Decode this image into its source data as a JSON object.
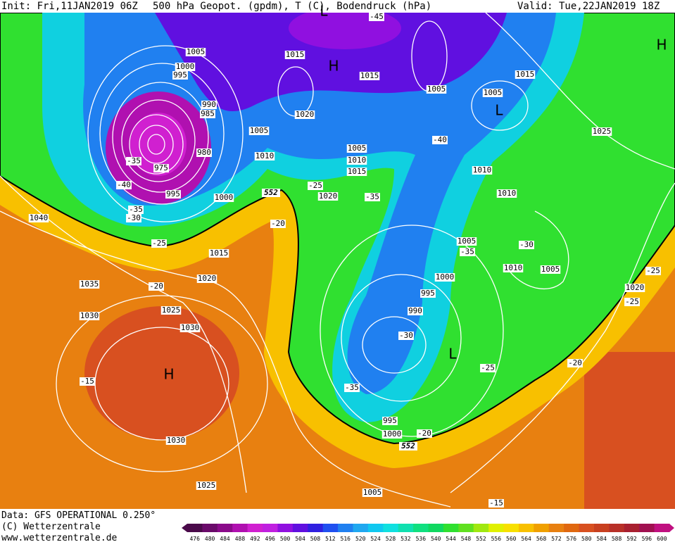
{
  "header": {
    "init": "Init: Fri,11JAN2019 06Z",
    "title": "500 hPa Geopot. (gpdm), T (C), Bodendruck (hPa)",
    "valid": "Valid: Tue,22JAN2019 18Z"
  },
  "map": {
    "pressure_labels": [
      1005,
      1000,
      995,
      990,
      985,
      980,
      975,
      995,
      1000,
      1005,
      1010,
      1015,
      1015,
      1020,
      1005,
      1010,
      1015,
      1020,
      1005,
      1005,
      1015,
      1025,
      1010,
      1010,
      1005,
      1010,
      1005,
      1000,
      995,
      990,
      1040,
      1035,
      1030,
      1025,
      1030,
      1020,
      1015,
      1030,
      1025,
      1005,
      995,
      1000,
      1020
    ],
    "temperature_labels": [
      -45,
      -40,
      -35,
      -40,
      -35,
      -30,
      -25,
      -20,
      -25,
      -35,
      -20,
      -35,
      -30,
      -30,
      -25,
      -35,
      -20,
      -15,
      -25,
      -25,
      -20,
      -15
    ],
    "centers": [
      "H",
      "H",
      "L",
      "L",
      "H",
      "L"
    ],
    "contour_labels": [
      552,
      552
    ]
  },
  "footer": {
    "source": "Data: GFS OPERATIONAL 0.250°",
    "copyright": "(C) Wetterzentrale",
    "url": "www.wetterzentrale.de"
  },
  "colorbar": {
    "ticks": [
      476,
      480,
      484,
      488,
      492,
      496,
      500,
      504,
      508,
      512,
      516,
      520,
      524,
      528,
      532,
      536,
      540,
      544,
      548,
      552,
      556,
      560,
      564,
      568,
      572,
      576,
      580,
      584,
      588,
      592,
      596,
      600
    ],
    "colors": [
      "#4a0a4a",
      "#6a0a6a",
      "#8a0a8a",
      "#b010b0",
      "#d020d0",
      "#c020e0",
      "#9010e0",
      "#6010e0",
      "#3020e0",
      "#2050f0",
      "#2080f0",
      "#20a8f0",
      "#10c8f0",
      "#10e0e0",
      "#10e0b0",
      "#10e080",
      "#10d860",
      "#30e030",
      "#60e020",
      "#a0e810",
      "#e0f000",
      "#f8e000",
      "#f8c000",
      "#f0a000",
      "#e88010",
      "#e06810",
      "#d85020",
      "#c84020",
      "#b83028",
      "#a82030",
      "#a01050",
      "#c01080"
    ]
  }
}
